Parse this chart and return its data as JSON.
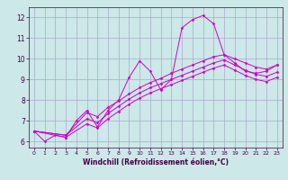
{
  "background_color": "#cce8e8",
  "line_color": "#cc00cc",
  "grid_color": "#aaaacc",
  "xlabel": "Windchill (Refroidissement éolien,°C)",
  "xlim": [
    -0.5,
    23.5
  ],
  "ylim": [
    5.7,
    12.5
  ],
  "yticks": [
    6,
    7,
    8,
    9,
    10,
    11,
    12
  ],
  "xticks": [
    0,
    1,
    2,
    3,
    4,
    5,
    6,
    7,
    8,
    9,
    10,
    11,
    12,
    13,
    14,
    15,
    16,
    17,
    18,
    19,
    20,
    21,
    22,
    23
  ],
  "series": [
    {
      "x": [
        0,
        1,
        2,
        3,
        4,
        5,
        6,
        7,
        8,
        9,
        10,
        11,
        12,
        13,
        14,
        15,
        16,
        17,
        18,
        19,
        20,
        21,
        22,
        23
      ],
      "y": [
        6.5,
        6.0,
        6.3,
        6.2,
        7.0,
        7.5,
        6.7,
        7.5,
        8.0,
        9.1,
        9.9,
        9.4,
        8.5,
        9.0,
        11.5,
        11.9,
        12.1,
        11.7,
        10.2,
        9.8,
        9.4,
        9.3,
        9.4,
        9.7
      ]
    },
    {
      "x": [
        0,
        3,
        5,
        6,
        7,
        8,
        9,
        10,
        11,
        12,
        13,
        14,
        15,
        16,
        17,
        18,
        19,
        20,
        21,
        22,
        23
      ],
      "y": [
        6.5,
        6.3,
        7.4,
        7.2,
        7.65,
        7.95,
        8.3,
        8.6,
        8.85,
        9.05,
        9.3,
        9.5,
        9.7,
        9.9,
        10.1,
        10.2,
        10.0,
        9.8,
        9.6,
        9.5,
        9.7
      ]
    },
    {
      "x": [
        0,
        3,
        5,
        6,
        7,
        8,
        9,
        10,
        11,
        12,
        13,
        14,
        15,
        16,
        17,
        18,
        19,
        20,
        21,
        22,
        23
      ],
      "y": [
        6.5,
        6.3,
        7.1,
        6.9,
        7.35,
        7.7,
        8.05,
        8.35,
        8.6,
        8.8,
        9.0,
        9.2,
        9.4,
        9.6,
        9.8,
        9.95,
        9.7,
        9.45,
        9.25,
        9.15,
        9.35
      ]
    },
    {
      "x": [
        0,
        3,
        5,
        6,
        7,
        8,
        9,
        10,
        11,
        12,
        13,
        14,
        15,
        16,
        17,
        18,
        19,
        20,
        21,
        22,
        23
      ],
      "y": [
        6.5,
        6.2,
        6.85,
        6.65,
        7.1,
        7.45,
        7.8,
        8.1,
        8.35,
        8.55,
        8.75,
        8.95,
        9.15,
        9.35,
        9.55,
        9.7,
        9.45,
        9.2,
        9.0,
        8.9,
        9.1
      ]
    }
  ]
}
